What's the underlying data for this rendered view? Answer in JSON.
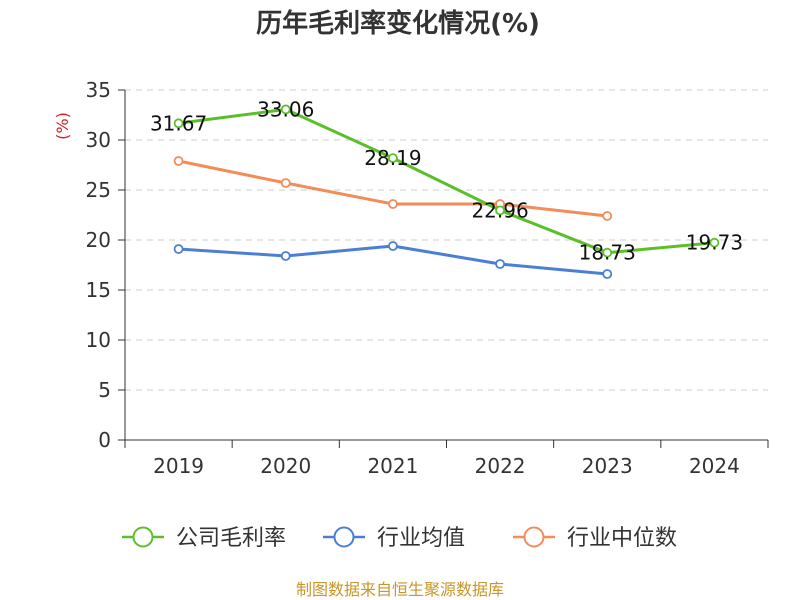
{
  "chart_data": {
    "type": "line",
    "title": "历年毛利率变化情况(%)",
    "ylabel": "(%)",
    "xlabel": "",
    "categories": [
      "2019",
      "2020",
      "2021",
      "2022",
      "2023",
      "2024"
    ],
    "ylim": [
      0,
      35
    ],
    "yticks": [
      0,
      5,
      10,
      15,
      20,
      25,
      30,
      35
    ],
    "grid": true,
    "legend_position": "bottom",
    "series": [
      {
        "name": "公司毛利率",
        "color": "#5cbf2a",
        "values": [
          31.67,
          33.06,
          28.19,
          22.96,
          18.73,
          19.73
        ],
        "labels": [
          "31.67",
          "33.06",
          "28.19",
          "22.96",
          "18.73",
          "19.73"
        ]
      },
      {
        "name": "行业均值",
        "color": "#4a7fd4",
        "values": [
          19.1,
          18.4,
          19.4,
          17.6,
          16.6,
          null
        ]
      },
      {
        "name": "行业中位数",
        "color": "#f28c58",
        "values": [
          27.9,
          25.7,
          23.6,
          23.6,
          22.4,
          null
        ]
      }
    ]
  },
  "source": {
    "text": "制图数据来自恒生聚源数据库",
    "color": "#c8962a"
  },
  "ylabel_color": "#cc2222"
}
